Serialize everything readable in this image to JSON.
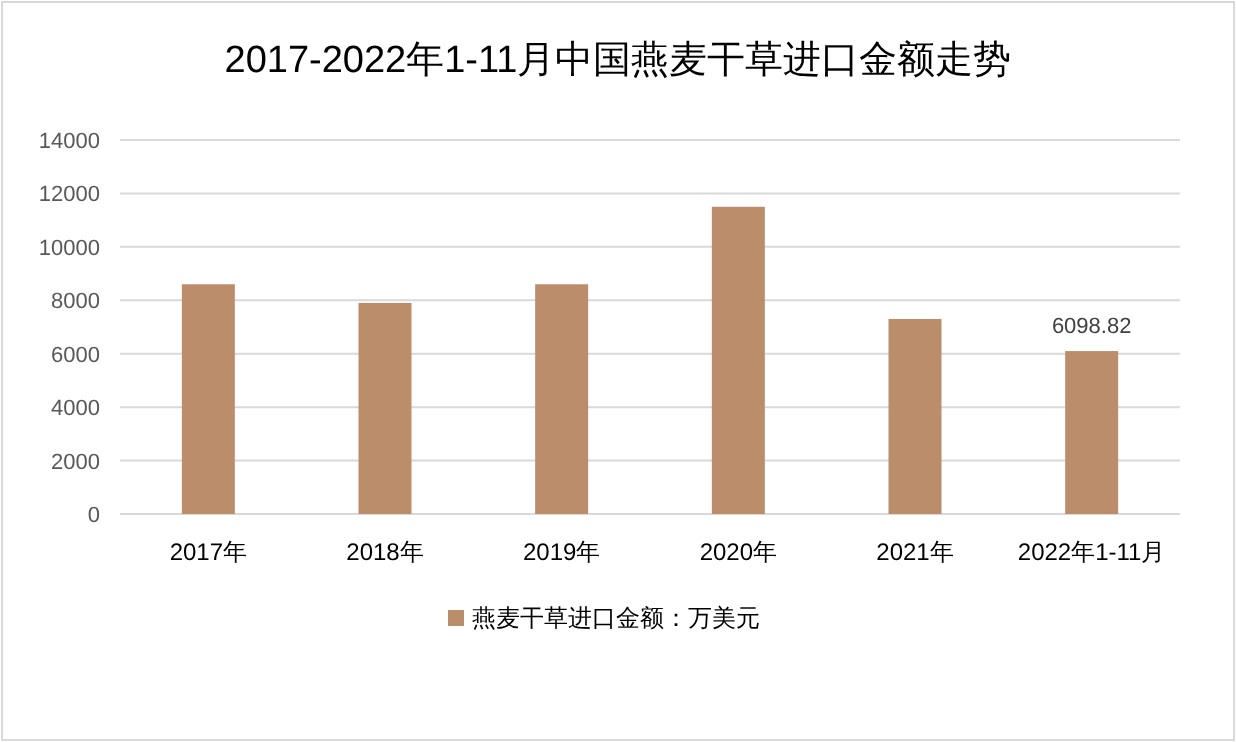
{
  "chart_data": {
    "type": "bar",
    "title": "2017-2022年1-11月中国燕麦干草进口金额走势",
    "categories": [
      "2017年",
      "2018年",
      "2019年",
      "2020年",
      "2021年",
      "2022年1-11月"
    ],
    "series": [
      {
        "name": "燕麦干草进口金额：万美元",
        "color": "#bc8d6b",
        "values": [
          8600,
          7900,
          8600,
          11500,
          7300,
          6098.82
        ],
        "value_labels": [
          null,
          null,
          null,
          null,
          null,
          "6098.82"
        ]
      }
    ],
    "ylim": [
      0,
      14000
    ],
    "yticks": [
      0,
      2000,
      4000,
      6000,
      8000,
      10000,
      12000,
      14000
    ],
    "grid": "y",
    "legend": "bottom"
  }
}
